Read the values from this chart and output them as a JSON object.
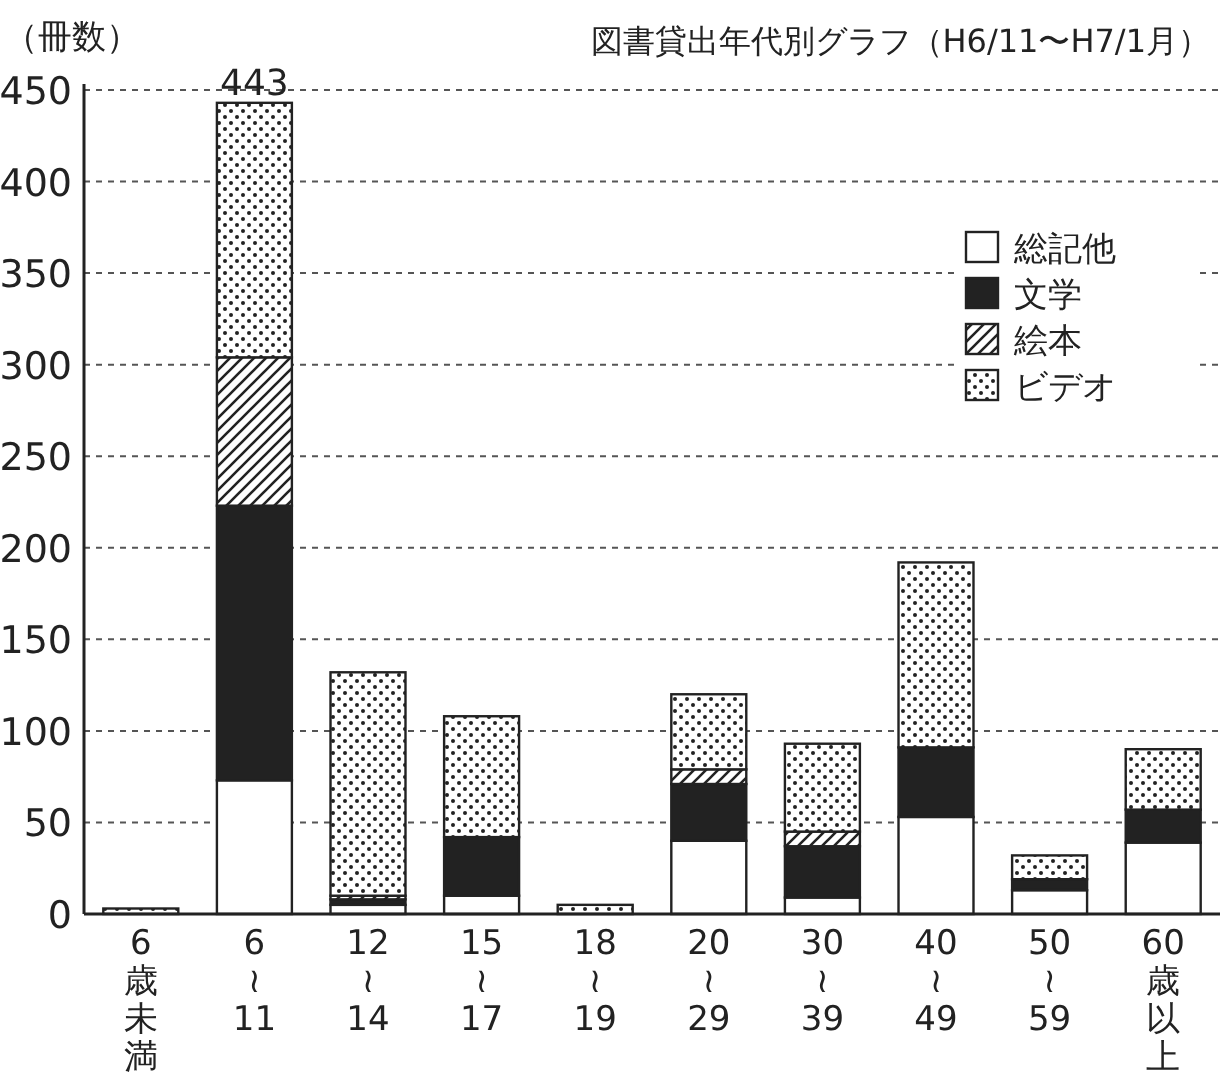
{
  "chart_data": {
    "type": "bar",
    "stacked": true,
    "title": "図書貸出年代別グラフ（H6/11〜H7/1月）",
    "ylabel": "（冊数）",
    "categories": [
      "6\n歳未満",
      "6\n≀\n11",
      "12\n≀\n14",
      "15\n≀\n17",
      "18\n≀\n19",
      "20\n≀\n29",
      "30\n≀\n39",
      "40\n≀\n49",
      "50\n≀\n59",
      "60\n歳以上"
    ],
    "series": [
      {
        "name": "総記他",
        "color": "#ffffff",
        "values": [
          null,
          73,
          5,
          10,
          null,
          40,
          9,
          53,
          13,
          39
        ]
      },
      {
        "name": "文学",
        "color": "#222222",
        "values": [
          null,
          150,
          3,
          32,
          null,
          31,
          28,
          38,
          6,
          18
        ]
      },
      {
        "name": "絵本",
        "color": "#222222",
        "values": [
          null,
          81,
          2,
          null,
          null,
          8,
          8,
          null,
          null,
          null
        ]
      },
      {
        "name": "ビデオ",
        "color": "#222222",
        "values": [
          3,
          139,
          122,
          66,
          5,
          41,
          48,
          101,
          13,
          33
        ]
      }
    ],
    "totals": [
      null,
      "443",
      null,
      null,
      null,
      null,
      null,
      null,
      null,
      null
    ],
    "ylim": [
      0,
      450
    ],
    "yticks": [
      0,
      50,
      100,
      150,
      200,
      250,
      300,
      350,
      400,
      450
    ],
    "grid": "y",
    "legend": "top right"
  }
}
